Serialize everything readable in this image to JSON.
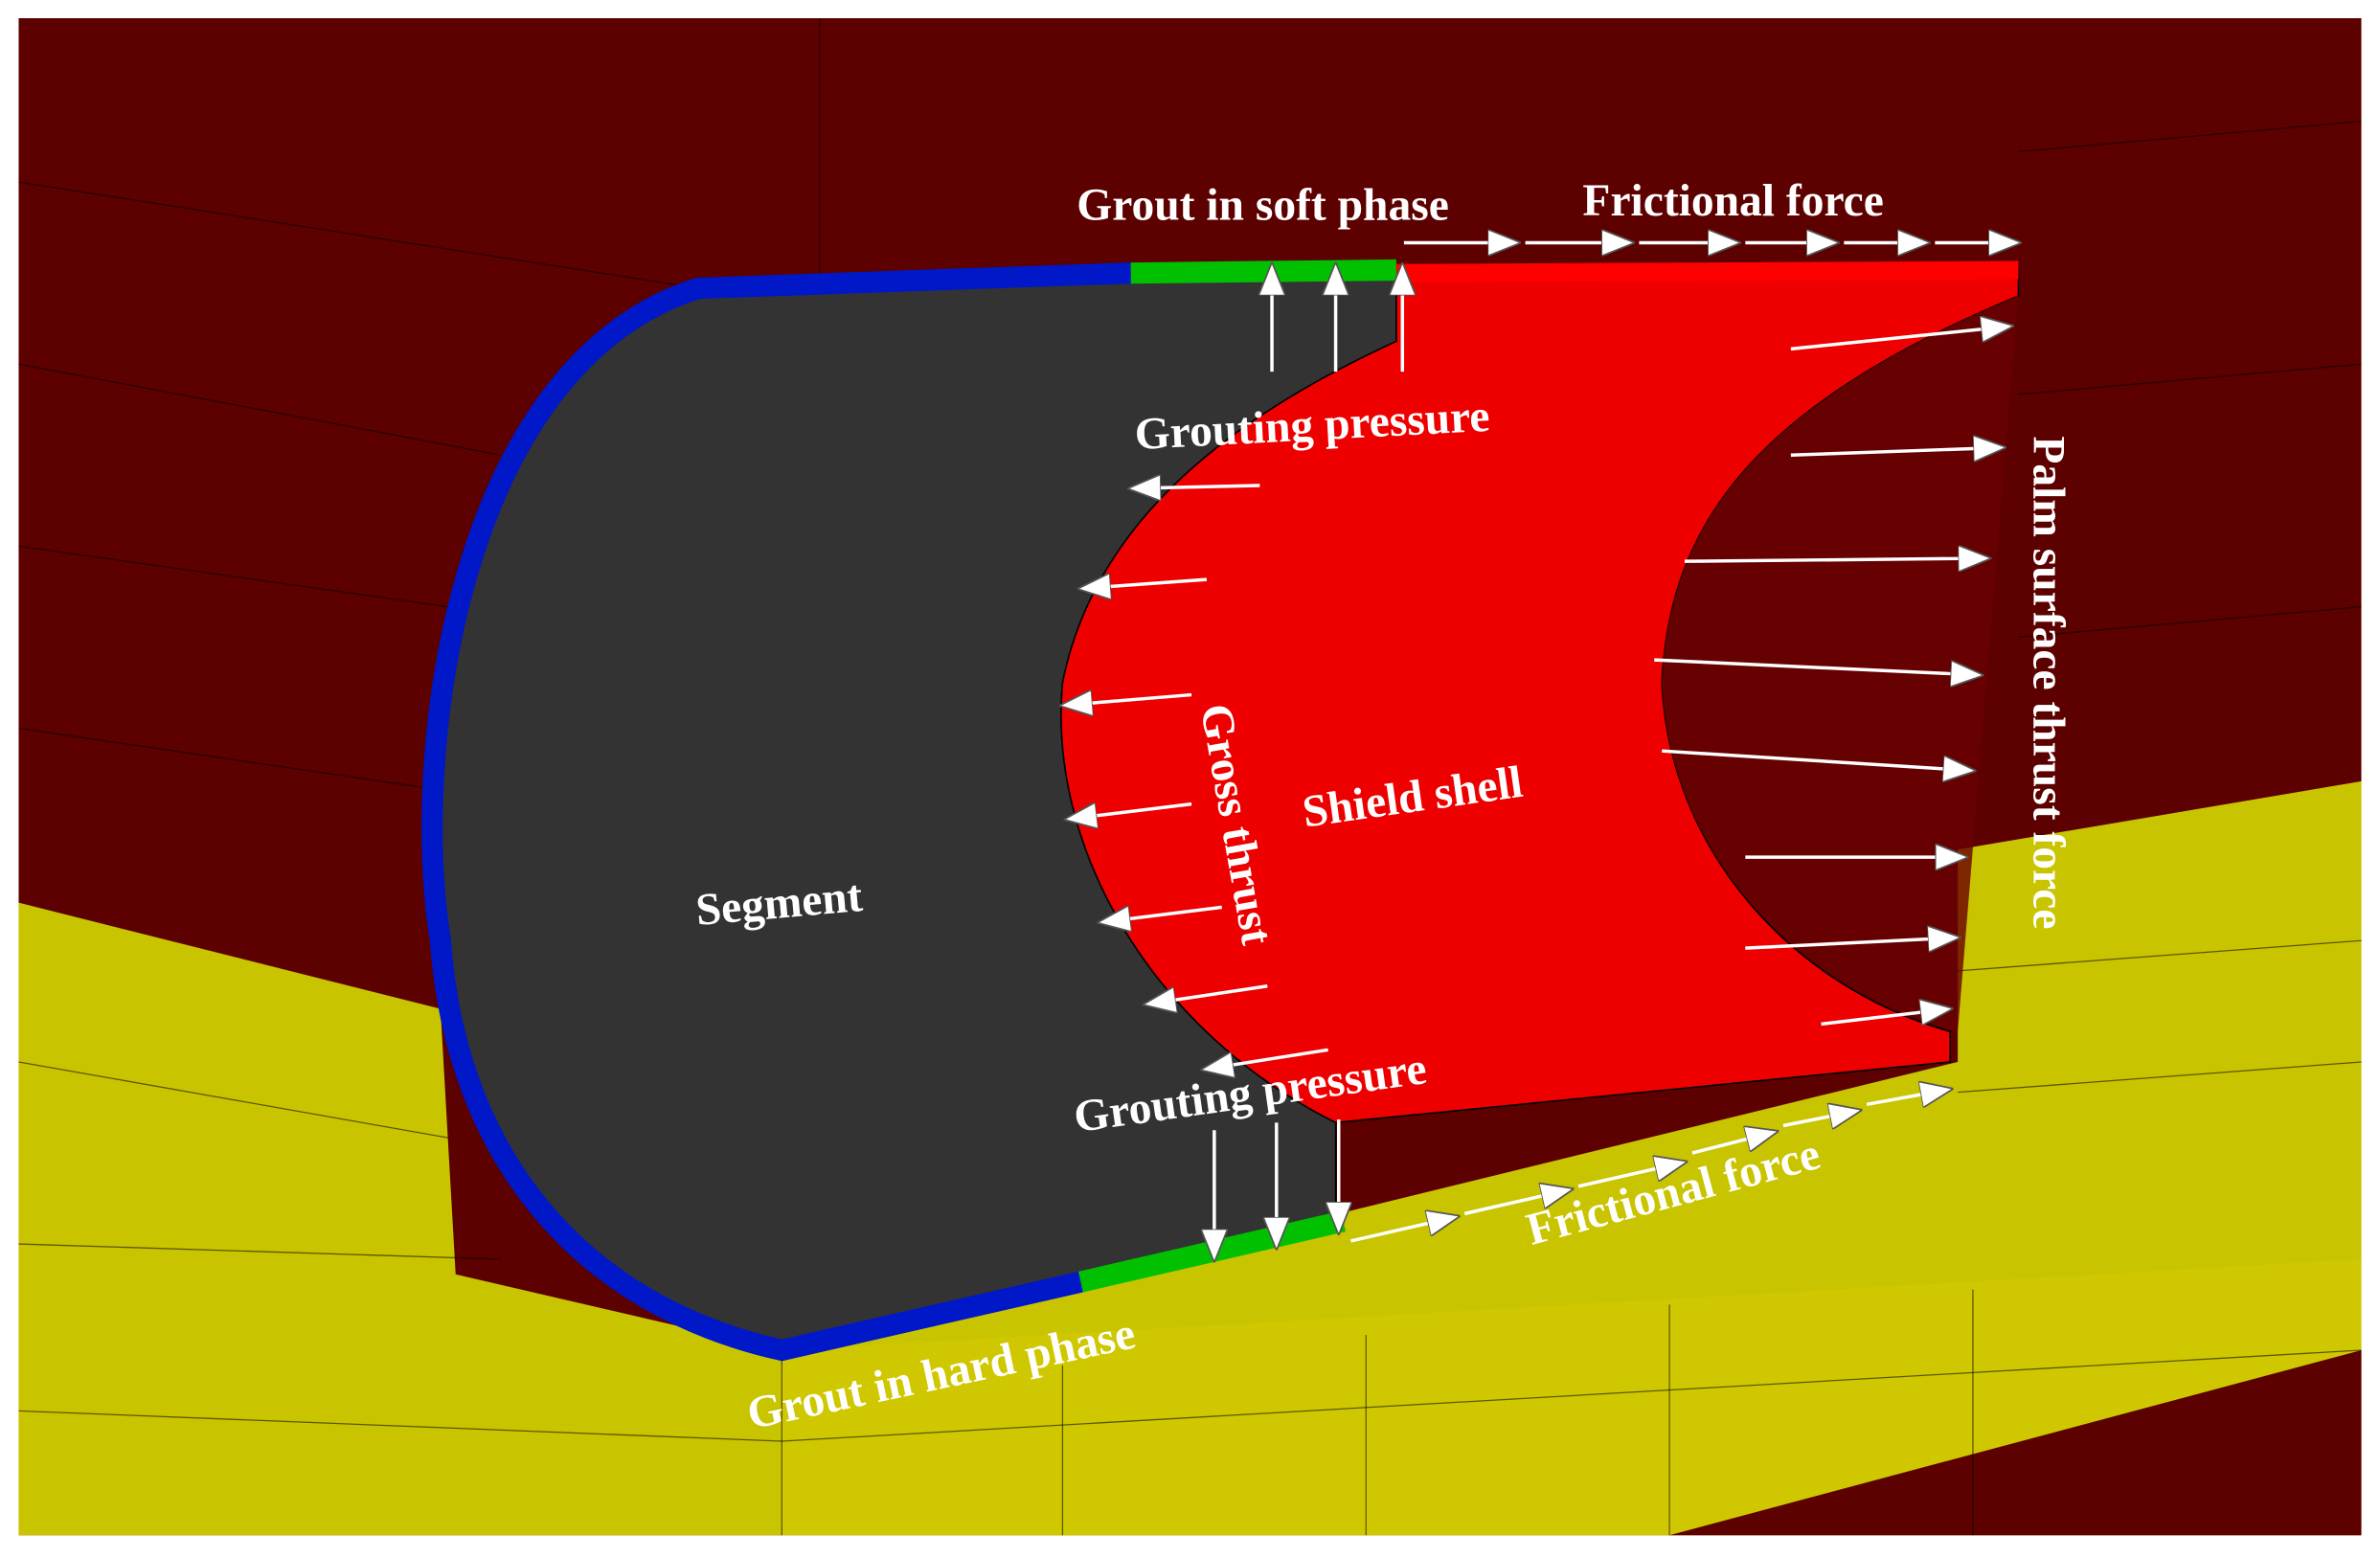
{
  "labels": {
    "grout_soft": "Grout in soft phase",
    "frictional_top": "Frictional force",
    "grouting_pressure_top": "Grouting pressure",
    "palm_thrust": "Palm surface thrust force",
    "gross_thrust": "Gross thrust",
    "shield_shell": "Shield shell",
    "segment": "Segment",
    "grouting_pressure_bottom": "Grouting pressure",
    "frictional_bottom": "Frictional force",
    "grout_hard": "Grout in hard phase"
  }
}
